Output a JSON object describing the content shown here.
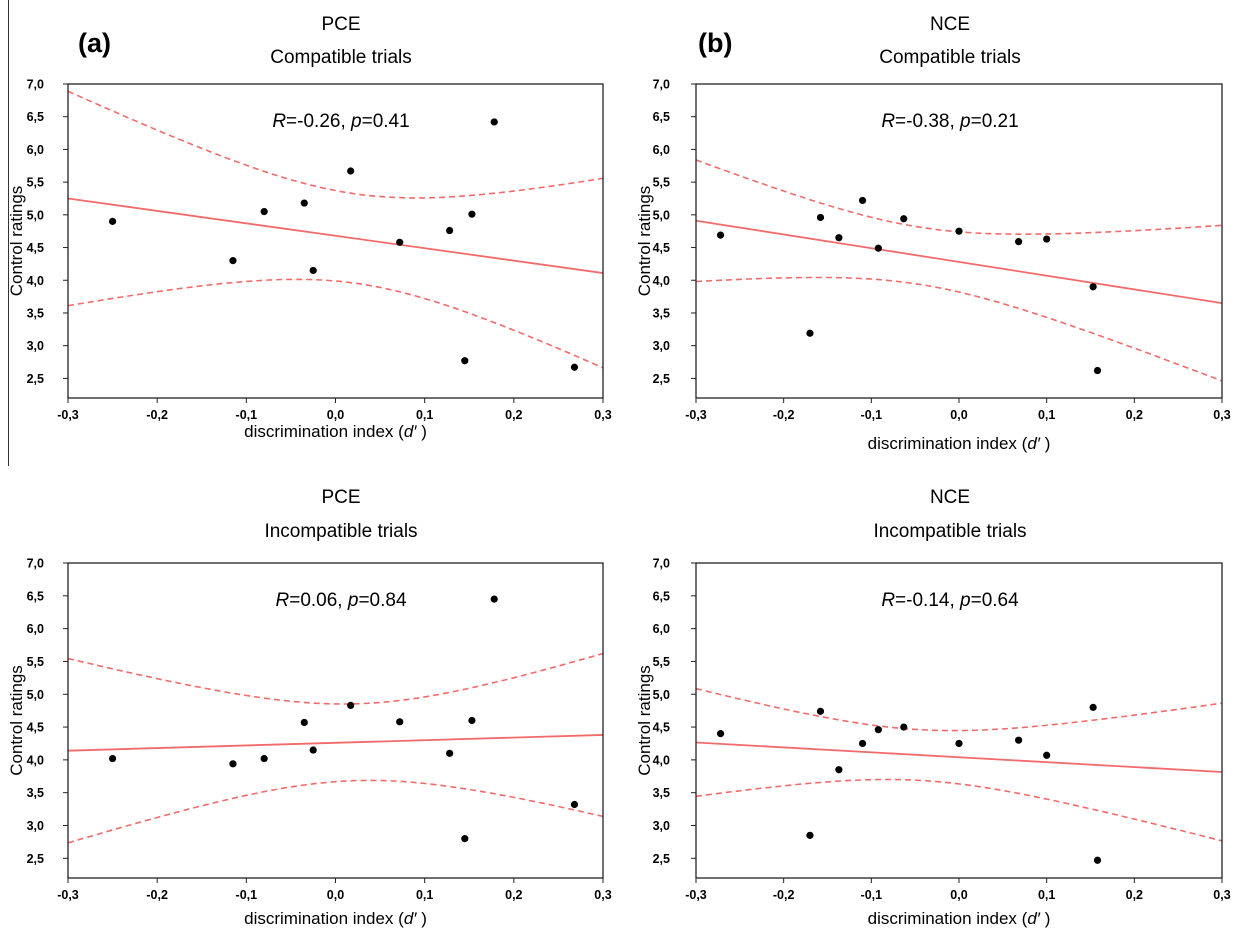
{
  "panel_letters": [
    "(a)",
    "(b)"
  ],
  "tick_labels": {
    "x": [
      "-0,3",
      "-0,2",
      "-0,1",
      "0,0",
      "0,1",
      "0,2",
      "0,3"
    ],
    "y": [
      "2,5",
      "3,0",
      "3,5",
      "4,0",
      "4,5",
      "5,0",
      "5,5",
      "6,0",
      "6,5",
      "7,0"
    ]
  },
  "chart_data": [
    {
      "type": "scatter",
      "title": "PCE",
      "subtitle": "Compatible trials",
      "panel_letter": "(a)",
      "xlabel": "discrimination index (d′)",
      "ylabel": "Control ratings",
      "xlim": [
        -0.3,
        0.3
      ],
      "ylim": [
        2.2,
        7.0
      ],
      "annotation": {
        "R_text": "R",
        "R_value": "=-0.26, ",
        "p_text": "p",
        "p_value": "=0.41"
      },
      "points": [
        [
          -0.25,
          4.9
        ],
        [
          -0.115,
          4.3
        ],
        [
          -0.08,
          5.05
        ],
        [
          -0.035,
          5.18
        ],
        [
          -0.025,
          4.15
        ],
        [
          0.017,
          5.67
        ],
        [
          0.072,
          4.58
        ],
        [
          0.128,
          4.76
        ],
        [
          0.145,
          2.77
        ],
        [
          0.153,
          5.01
        ],
        [
          0.178,
          6.42
        ],
        [
          0.268,
          2.67
        ]
      ],
      "regression": {
        "slope": -1.9,
        "intercept": 4.68
      },
      "confidence_band": {
        "n": 12,
        "x_mean": 0.0231,
        "sxx": 0.2633,
        "se": 1.062
      }
    },
    {
      "type": "scatter",
      "title": "NCE",
      "subtitle": "Compatible trials",
      "panel_letter": "(b)",
      "xlabel": "discrimination index (d′)",
      "ylabel": "Control ratings",
      "xlim": [
        -0.3,
        0.3
      ],
      "ylim": [
        2.2,
        7.0
      ],
      "annotation": {
        "R_text": "R",
        "R_value": "=-0.38, ",
        "p_text": "p",
        "p_value": "=0.21"
      },
      "points": [
        [
          -0.272,
          4.69
        ],
        [
          -0.17,
          3.19
        ],
        [
          -0.158,
          4.96
        ],
        [
          -0.137,
          4.65
        ],
        [
          -0.11,
          5.22
        ],
        [
          -0.092,
          4.49
        ],
        [
          -0.063,
          4.94
        ],
        [
          0.0,
          4.75
        ],
        [
          0.068,
          4.59
        ],
        [
          0.1,
          4.63
        ],
        [
          0.153,
          3.9
        ],
        [
          0.158,
          2.62
        ]
      ],
      "regression": {
        "slope": -2.1,
        "intercept": 4.28
      },
      "confidence_band": {
        "n": 12,
        "x_mean": -0.0444,
        "sxx": 0.2228,
        "se": 0.68
      }
    },
    {
      "type": "scatter",
      "title": "PCE",
      "subtitle": "Incompatible trials",
      "xlabel": "discrimination index (d′)",
      "ylabel": "Control ratings",
      "xlim": [
        -0.3,
        0.3
      ],
      "ylim": [
        2.2,
        7.0
      ],
      "annotation": {
        "R_text": "R",
        "R_value": "=0.06, ",
        "p_text": "p",
        "p_value": "=0.84"
      },
      "points": [
        [
          -0.25,
          4.02
        ],
        [
          -0.115,
          3.94
        ],
        [
          -0.08,
          4.02
        ],
        [
          -0.035,
          4.57
        ],
        [
          -0.025,
          4.15
        ],
        [
          0.017,
          4.83
        ],
        [
          0.072,
          4.58
        ],
        [
          0.128,
          4.1
        ],
        [
          0.145,
          2.8
        ],
        [
          0.153,
          4.6
        ],
        [
          0.178,
          6.45
        ],
        [
          0.268,
          3.32
        ]
      ],
      "regression": {
        "slope": 0.4,
        "intercept": 4.26
      },
      "confidence_band": {
        "n": 12,
        "x_mean": 0.0231,
        "sxx": 0.2633,
        "se": 0.91
      }
    },
    {
      "type": "scatter",
      "title": "NCE",
      "subtitle": "Incompatible trials",
      "xlabel": "discrimination index (d′)",
      "ylabel": "Control ratings",
      "xlim": [
        -0.3,
        0.3
      ],
      "ylim": [
        2.2,
        7.0
      ],
      "annotation": {
        "R_text": "R",
        "R_value": "=-0.14, ",
        "p_text": "p",
        "p_value": "=0.64"
      },
      "points": [
        [
          -0.272,
          4.4
        ],
        [
          -0.17,
          2.85
        ],
        [
          -0.158,
          4.74
        ],
        [
          -0.137,
          3.85
        ],
        [
          -0.11,
          4.25
        ],
        [
          -0.092,
          4.46
        ],
        [
          -0.063,
          4.5
        ],
        [
          0.0,
          4.25
        ],
        [
          0.068,
          4.3
        ],
        [
          0.1,
          4.07
        ],
        [
          0.153,
          4.8
        ],
        [
          0.158,
          2.47
        ]
      ],
      "regression": {
        "slope": -0.75,
        "intercept": 4.04
      },
      "confidence_band": {
        "n": 12,
        "x_mean": -0.0444,
        "sxx": 0.2228,
        "se": 0.6
      }
    }
  ],
  "colors": {
    "regression": "#f26b6b",
    "band": "#f26b6b",
    "points": "#000000",
    "axis": "#222222"
  }
}
